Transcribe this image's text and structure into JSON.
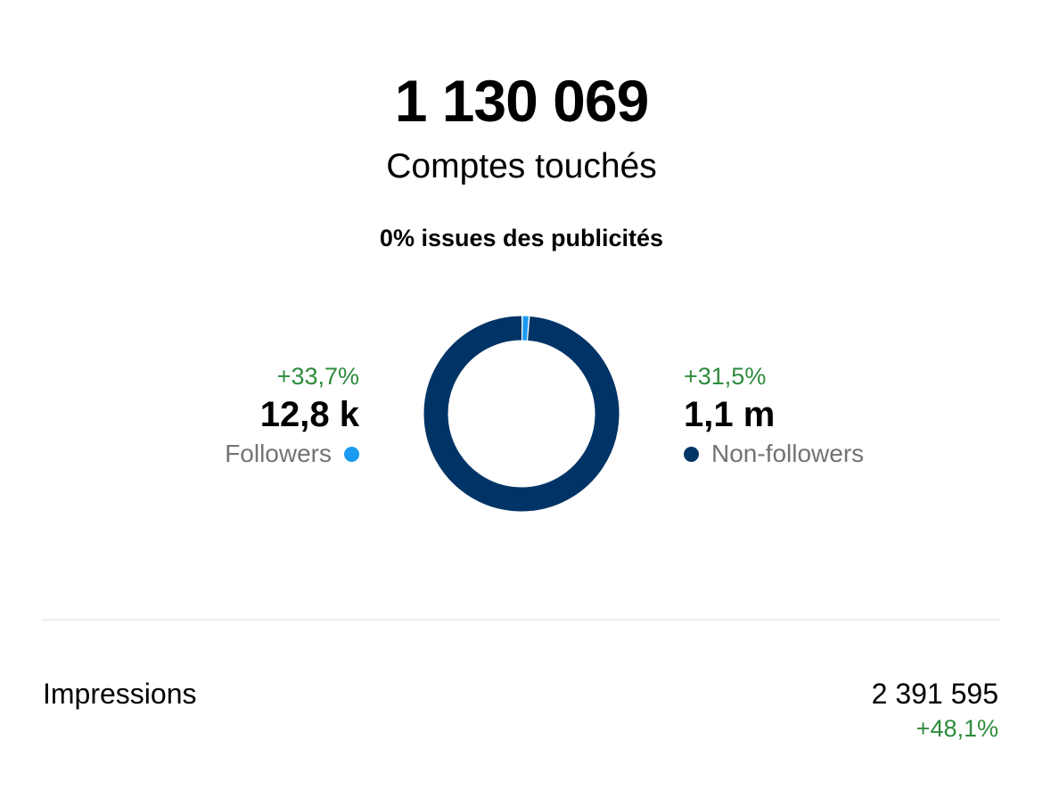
{
  "header": {
    "total": "1 130 069",
    "subtitle": "Comptes touchés",
    "ads_note": "0% issues des publicités"
  },
  "followers": {
    "delta": "+33,7%",
    "value": "12,8 k",
    "label": "Followers",
    "color": "#1a9af0"
  },
  "non_followers": {
    "delta": "+31,5%",
    "value": "1,1 m",
    "label": "Non-followers",
    "color": "#003466"
  },
  "impressions": {
    "label": "Impressions",
    "value": "2 391 595",
    "delta": "+48,1%"
  },
  "colors": {
    "positive": "#2e8b3c",
    "muted": "#737373",
    "divider": "#ededed"
  },
  "chart_data": {
    "type": "pie",
    "categories": [
      "Followers",
      "Non-followers"
    ],
    "values": [
      12800,
      1100000
    ]
  }
}
